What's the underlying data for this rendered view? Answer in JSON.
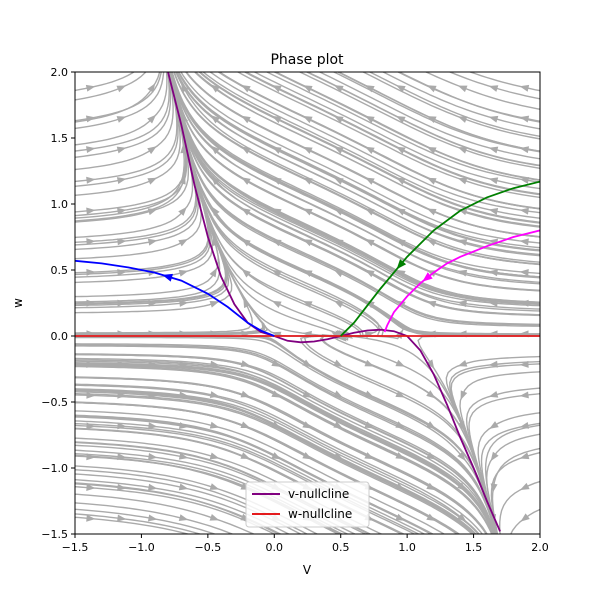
{
  "chart_data": {
    "type": "line",
    "title": "Phase plot",
    "xlabel": "V",
    "ylabel": "w",
    "xlim": [
      -1.5,
      2.0
    ],
    "ylim": [
      -1.5,
      2.0
    ],
    "xticks": [
      -1.5,
      -1.0,
      -0.5,
      0.0,
      0.5,
      1.0,
      1.5,
      2.0
    ],
    "xtick_labels": [
      "−1.5",
      "−1.0",
      "−0.5",
      "0.0",
      "0.5",
      "1.0",
      "1.5",
      "2.0"
    ],
    "yticks": [
      -1.5,
      -1.0,
      -0.5,
      0.0,
      0.5,
      1.0,
      1.5,
      2.0
    ],
    "ytick_labels": [
      "−1.5",
      "−1.0",
      "−0.5",
      "0.0",
      "0.5",
      "1.0",
      "1.5",
      "2.0"
    ],
    "grid": false,
    "legend_position": "lower-center",
    "series": [
      {
        "name": "v-nullcline",
        "color": "#800080",
        "x": [
          -0.8,
          -0.7,
          -0.6,
          -0.5,
          -0.4,
          -0.3,
          -0.2,
          -0.1,
          0.0,
          0.1,
          0.2,
          0.3,
          0.4,
          0.5,
          0.6,
          0.7,
          0.8,
          0.9,
          1.0,
          1.1,
          1.2,
          1.3,
          1.4,
          1.5,
          1.6,
          1.7
        ],
        "y": [
          2.0,
          1.6,
          1.14,
          0.75,
          0.45,
          0.24,
          0.1,
          0.03,
          0.0,
          -0.036,
          -0.048,
          -0.042,
          -0.024,
          0.0,
          0.024,
          0.042,
          0.048,
          0.036,
          0.0,
          -0.11,
          -0.29,
          -0.52,
          -0.77,
          -1.0,
          -1.25,
          -1.48
        ]
      },
      {
        "name": "w-nullcline",
        "color": "#e41a1c",
        "x": [
          -1.5,
          2.0
        ],
        "y": [
          0.0,
          0.0
        ]
      }
    ],
    "trajectories": [
      {
        "color": "#0000ff",
        "x": [
          -1.5,
          -1.3,
          -1.1,
          -0.9,
          -0.7,
          -0.5,
          -0.35,
          -0.2,
          -0.1,
          0.0
        ],
        "y": [
          0.57,
          0.55,
          0.52,
          0.48,
          0.42,
          0.32,
          0.22,
          0.1,
          0.04,
          0.0
        ],
        "arrow_at": 0.4
      },
      {
        "color": "#008000",
        "x": [
          0.5,
          0.6,
          0.7,
          0.8,
          0.9,
          1.0,
          1.2,
          1.4,
          1.6,
          1.8,
          2.0
        ],
        "y": [
          0.0,
          0.1,
          0.23,
          0.36,
          0.48,
          0.6,
          0.8,
          0.95,
          1.05,
          1.12,
          1.17
        ],
        "arrow_at": 0.45
      },
      {
        "color": "#ff00ff",
        "x": [
          0.83,
          0.85,
          0.9,
          1.0,
          1.1,
          1.2,
          1.3,
          1.4,
          1.6,
          1.8,
          2.0
        ],
        "y": [
          0.03,
          0.08,
          0.18,
          0.3,
          0.4,
          0.48,
          0.55,
          0.6,
          0.68,
          0.75,
          0.8
        ],
        "arrow_at": 0.45
      }
    ],
    "stream_color": "#aaaaaa"
  }
}
